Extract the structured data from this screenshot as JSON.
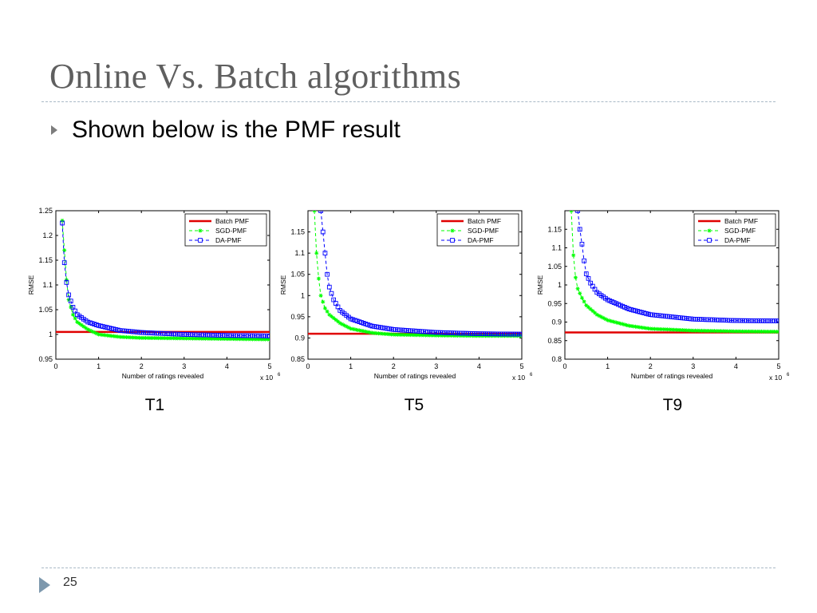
{
  "slide": {
    "title": "Online Vs. Batch algorithms",
    "bullet": "Shown below is the PMF result",
    "page_number": "25"
  },
  "colors": {
    "title": "#5f5f5f",
    "rule": "#a9b9c6",
    "bullet_arrow": "#7d7d7d",
    "footer_arrow": "#7d98ad",
    "batch": "#e00000",
    "sgd": "#00ff00",
    "da": "#0000ff"
  },
  "chart_data": [
    {
      "type": "line",
      "caption": "T1",
      "xlabel": "Number of ratings revealed",
      "ylabel": "RMSE",
      "x_exponent_label": "x 10",
      "x_exponent_power": "6",
      "xlim": [
        0,
        5
      ],
      "ylim": [
        0.95,
        1.25
      ],
      "xticks": [
        0,
        1,
        2,
        3,
        4,
        5
      ],
      "yticks": [
        0.95,
        1,
        1.05,
        1.1,
        1.15,
        1.2,
        1.25
      ],
      "legend_position": "top-right",
      "series": [
        {
          "name": "Batch PMF",
          "style": "solid",
          "x": [
            0,
            5
          ],
          "y": [
            1.005,
            1.005
          ]
        },
        {
          "name": "SGD-PMF",
          "style": "dashed-star",
          "x": [
            0.15,
            0.2,
            0.25,
            0.3,
            0.4,
            0.5,
            0.75,
            1,
            1.5,
            2,
            3,
            4,
            5
          ],
          "y": [
            1.23,
            1.17,
            1.11,
            1.07,
            1.04,
            1.025,
            1.01,
            1.0,
            0.995,
            0.993,
            0.992,
            0.991,
            0.99
          ]
        },
        {
          "name": "DA-PMF",
          "style": "dashed-square",
          "x": [
            0.15,
            0.2,
            0.25,
            0.3,
            0.4,
            0.5,
            0.75,
            1,
            1.5,
            2,
            3,
            4,
            5
          ],
          "y": [
            1.225,
            1.145,
            1.105,
            1.08,
            1.055,
            1.04,
            1.025,
            1.018,
            1.008,
            1.004,
            1.0,
            0.998,
            0.997
          ]
        }
      ]
    },
    {
      "type": "line",
      "caption": "T5",
      "xlabel": "Number of ratings revealed",
      "ylabel": "RMSE",
      "x_exponent_label": "x 10",
      "x_exponent_power": "6",
      "xlim": [
        0,
        5
      ],
      "ylim": [
        0.85,
        1.2
      ],
      "xticks": [
        0,
        1,
        2,
        3,
        4,
        5
      ],
      "yticks": [
        0.85,
        0.9,
        0.95,
        1,
        1.05,
        1.1,
        1.15
      ],
      "legend_position": "top-right",
      "series": [
        {
          "name": "Batch PMF",
          "style": "solid",
          "x": [
            0,
            5
          ],
          "y": [
            0.91,
            0.91
          ]
        },
        {
          "name": "SGD-PMF",
          "style": "dashed-star",
          "x": [
            0.15,
            0.2,
            0.25,
            0.3,
            0.4,
            0.5,
            0.75,
            1,
            1.5,
            2,
            3,
            4,
            5
          ],
          "y": [
            1.2,
            1.1,
            1.04,
            1.0,
            0.97,
            0.955,
            0.935,
            0.922,
            0.912,
            0.908,
            0.906,
            0.905,
            0.905
          ]
        },
        {
          "name": "DA-PMF",
          "style": "dashed-square",
          "x": [
            0.3,
            0.35,
            0.4,
            0.45,
            0.5,
            0.6,
            0.75,
            1,
            1.5,
            2,
            3,
            4,
            5
          ],
          "y": [
            1.2,
            1.15,
            1.1,
            1.05,
            1.02,
            0.99,
            0.965,
            0.945,
            0.928,
            0.92,
            0.913,
            0.91,
            0.909
          ]
        }
      ]
    },
    {
      "type": "line",
      "caption": "T9",
      "xlabel": "Number of ratings revealed",
      "ylabel": "RMSE",
      "x_exponent_label": "x 10",
      "x_exponent_power": "6",
      "xlim": [
        0,
        5
      ],
      "ylim": [
        0.8,
        1.2
      ],
      "xticks": [
        0,
        1,
        2,
        3,
        4,
        5
      ],
      "yticks": [
        0.8,
        0.85,
        0.9,
        0.95,
        1,
        1.05,
        1.1,
        1.15
      ],
      "legend_position": "top-right",
      "series": [
        {
          "name": "Batch PMF",
          "style": "solid",
          "x": [
            0,
            5
          ],
          "y": [
            0.872,
            0.872
          ]
        },
        {
          "name": "SGD-PMF",
          "style": "dashed-star",
          "x": [
            0.15,
            0.2,
            0.25,
            0.3,
            0.4,
            0.5,
            0.75,
            1,
            1.5,
            2,
            3,
            4,
            5
          ],
          "y": [
            1.2,
            1.08,
            1.02,
            0.99,
            0.965,
            0.945,
            0.92,
            0.905,
            0.89,
            0.882,
            0.877,
            0.875,
            0.874
          ]
        },
        {
          "name": "DA-PMF",
          "style": "dashed-square",
          "x": [
            0.3,
            0.35,
            0.4,
            0.45,
            0.5,
            0.6,
            0.75,
            1,
            1.5,
            2,
            3,
            4,
            5
          ],
          "y": [
            1.2,
            1.15,
            1.11,
            1.065,
            1.03,
            1.005,
            0.98,
            0.96,
            0.935,
            0.92,
            0.908,
            0.904,
            0.903
          ]
        }
      ]
    }
  ]
}
